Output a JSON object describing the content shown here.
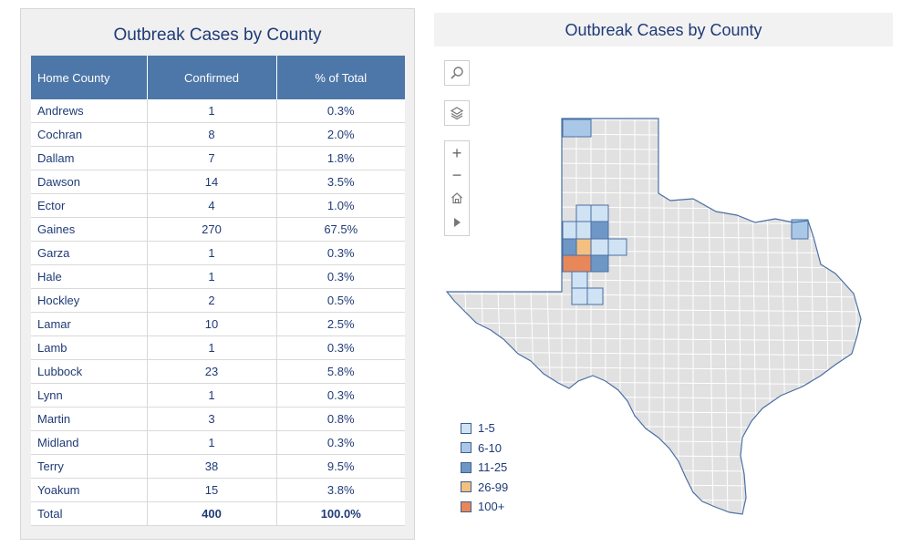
{
  "table_panel": {
    "title": "Outbreak Cases by County",
    "headers": {
      "county": "Home County",
      "confirmed": "Confirmed",
      "percent": "% of Total"
    },
    "rows": [
      {
        "county": "Andrews",
        "confirmed": "1",
        "percent": "0.3%"
      },
      {
        "county": "Cochran",
        "confirmed": "8",
        "percent": "2.0%"
      },
      {
        "county": "Dallam",
        "confirmed": "7",
        "percent": "1.8%"
      },
      {
        "county": "Dawson",
        "confirmed": "14",
        "percent": "3.5%"
      },
      {
        "county": "Ector",
        "confirmed": "4",
        "percent": "1.0%"
      },
      {
        "county": "Gaines",
        "confirmed": "270",
        "percent": "67.5%"
      },
      {
        "county": "Garza",
        "confirmed": "1",
        "percent": "0.3%"
      },
      {
        "county": "Hale",
        "confirmed": "1",
        "percent": "0.3%"
      },
      {
        "county": "Hockley",
        "confirmed": "2",
        "percent": "0.5%"
      },
      {
        "county": "Lamar",
        "confirmed": "10",
        "percent": "2.5%"
      },
      {
        "county": "Lamb",
        "confirmed": "1",
        "percent": "0.3%"
      },
      {
        "county": "Lubbock",
        "confirmed": "23",
        "percent": "5.8%"
      },
      {
        "county": "Lynn",
        "confirmed": "1",
        "percent": "0.3%"
      },
      {
        "county": "Martin",
        "confirmed": "3",
        "percent": "0.8%"
      },
      {
        "county": "Midland",
        "confirmed": "1",
        "percent": "0.3%"
      },
      {
        "county": "Terry",
        "confirmed": "38",
        "percent": "9.5%"
      },
      {
        "county": "Yoakum",
        "confirmed": "15",
        "percent": "3.8%"
      }
    ],
    "total": {
      "county": "Total",
      "confirmed": "400",
      "percent": "100.0%"
    }
  },
  "map_panel": {
    "title": "Outbreak Cases by County",
    "tools": {
      "search": "search-icon",
      "layers": "layers-icon",
      "zoom_in": "+",
      "zoom_out": "−",
      "home": "home-icon",
      "play": "play-icon"
    },
    "legend": [
      {
        "label": "1-5",
        "color": "#cfe3f4"
      },
      {
        "label": "6-10",
        "color": "#a9c8e8"
      },
      {
        "label": "11-25",
        "color": "#6f97c6"
      },
      {
        "label": "26-99",
        "color": "#f4c07f"
      },
      {
        "label": "100+",
        "color": "#e8875a"
      }
    ],
    "colors": {
      "state_fill": "#e1e1e1",
      "county_border": "#ffffff",
      "state_outline": "#4a6fa5"
    }
  }
}
